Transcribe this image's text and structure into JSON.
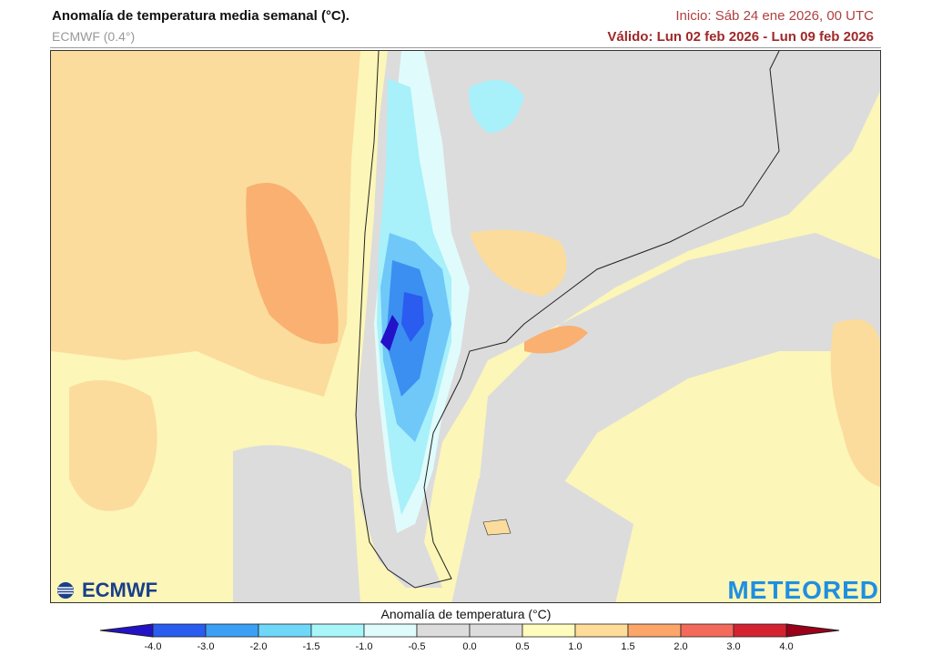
{
  "header": {
    "title": "Anomalía de temperatura media semanal (°C).",
    "model": "ECMWF (0.4°)",
    "init": "Inicio: Sáb 24 ene 2026, 00 UTC",
    "valid": "Válido: Lun 02 feb 2026 - Lun 09 feb 2026"
  },
  "logos": {
    "left": "ECMWF",
    "right": "METEORED"
  },
  "colorbar": {
    "title": "Anomalía de temperatura (°C)",
    "ticks": [
      "-4.0",
      "-3.0",
      "-2.0",
      "-1.5",
      "-1.0",
      "-0.5",
      "0.0",
      "0.5",
      "1.0",
      "1.5",
      "2.0",
      "3.0",
      "4.0"
    ],
    "under_color": "#2412c8",
    "over_color": "#9b0018",
    "colors": [
      "#2a5cf0",
      "#3ba0f5",
      "#6fd8f8",
      "#a8f6fa",
      "#e0fbfb",
      "#dcdcdc",
      "#dcdcdc",
      "#fffcbd",
      "#fedc9a",
      "#fca66a",
      "#f46a5a",
      "#d42330"
    ]
  },
  "map": {
    "region": "South America (southern)",
    "colors": {
      "ocean_warm": "#fcf6b8",
      "warm": "#fbdc9c",
      "hot": "#f9b071",
      "neutral": "#dcdcdc",
      "cool": "#e0fbfb",
      "cold1": "#a8f0fa",
      "cold2": "#6fc8f8",
      "cold3": "#3b8ff0",
      "cold4": "#2a5cf0"
    }
  }
}
